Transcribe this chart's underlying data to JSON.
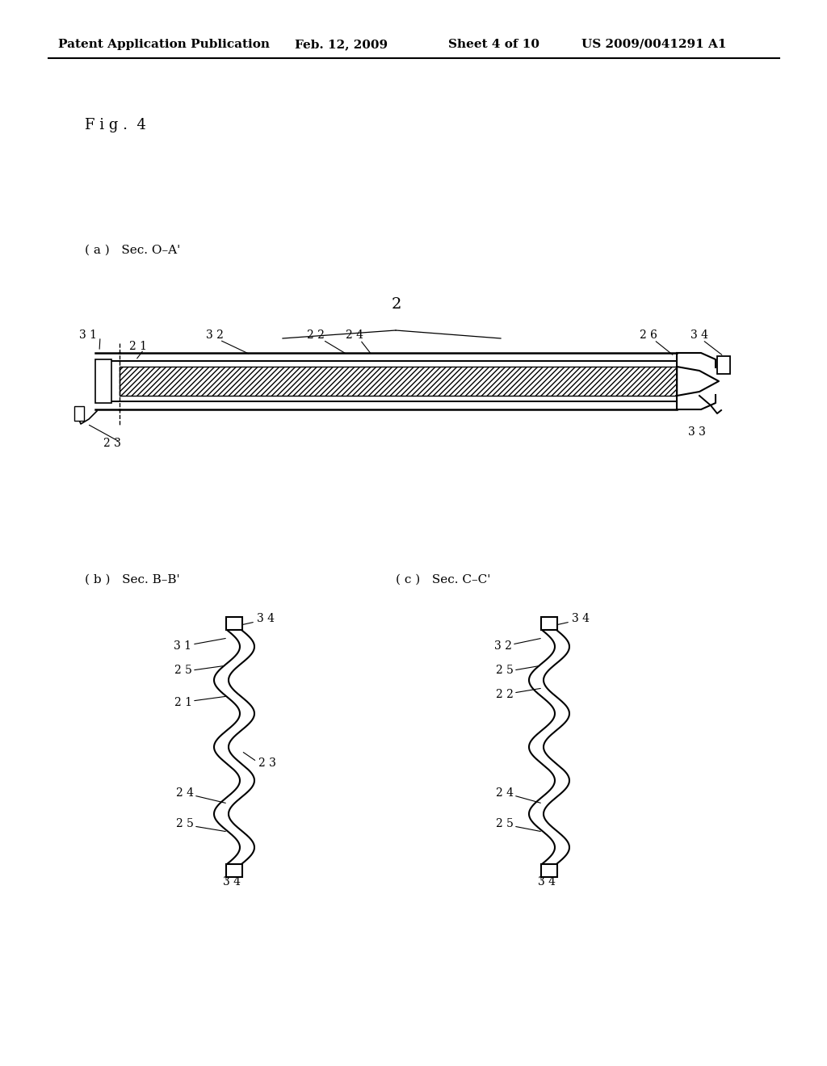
{
  "title": "Patent Application Publication",
  "date": "Feb. 12, 2009",
  "sheet": "Sheet 4 of 10",
  "patent_num": "US 2009/0041291 A1",
  "fig_label": "F i g .  4",
  "sub_a_label": "( a )   Sec. O–A'",
  "sub_b_label": "( b )   Sec. B–B'",
  "sub_c_label": "( c )   Sec. C–C'",
  "bg_color": "#ffffff"
}
